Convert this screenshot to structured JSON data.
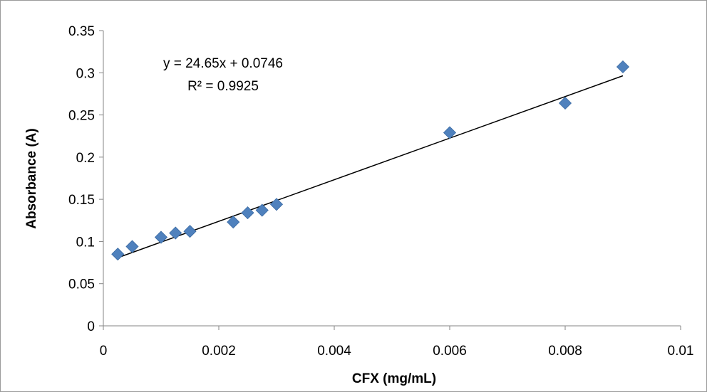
{
  "chart_data": {
    "type": "scatter",
    "title": "",
    "xlabel": "CFX (mg/mL)",
    "ylabel": "Absorbance (A)",
    "xlim": [
      0,
      0.01
    ],
    "ylim": [
      0,
      0.35
    ],
    "xticks": [
      0,
      0.002,
      0.004,
      0.006,
      0.008,
      0.01
    ],
    "xtick_labels": [
      "0",
      "0.002",
      "0.004",
      "0.006",
      "0.008",
      "0.01"
    ],
    "yticks": [
      0,
      0.05,
      0.1,
      0.15,
      0.2,
      0.25,
      0.3,
      0.35
    ],
    "ytick_labels": [
      "0",
      "0.05",
      "0.1",
      "0.15",
      "0.2",
      "0.25",
      "0.3",
      "0.35"
    ],
    "grid": false,
    "legend": "none",
    "marker": "diamond",
    "marker_color": "#4f81bd",
    "trendline_color": "#000000",
    "series": [
      {
        "x": [
          0.00025,
          0.0005,
          0.001,
          0.00125,
          0.0015,
          0.00225,
          0.0025,
          0.00275,
          0.003,
          0.006,
          0.008,
          0.009
        ],
        "y": [
          0.085,
          0.094,
          0.105,
          0.11,
          0.112,
          0.123,
          0.134,
          0.137,
          0.144,
          0.229,
          0.264,
          0.307
        ]
      }
    ],
    "trendline": {
      "slope": 24.65,
      "intercept": 0.0746,
      "x_range": [
        0.00025,
        0.009
      ]
    },
    "annotation": {
      "equation": "y = 24.65x + 0.0746",
      "r_squared": "R² = 0.9925"
    }
  }
}
